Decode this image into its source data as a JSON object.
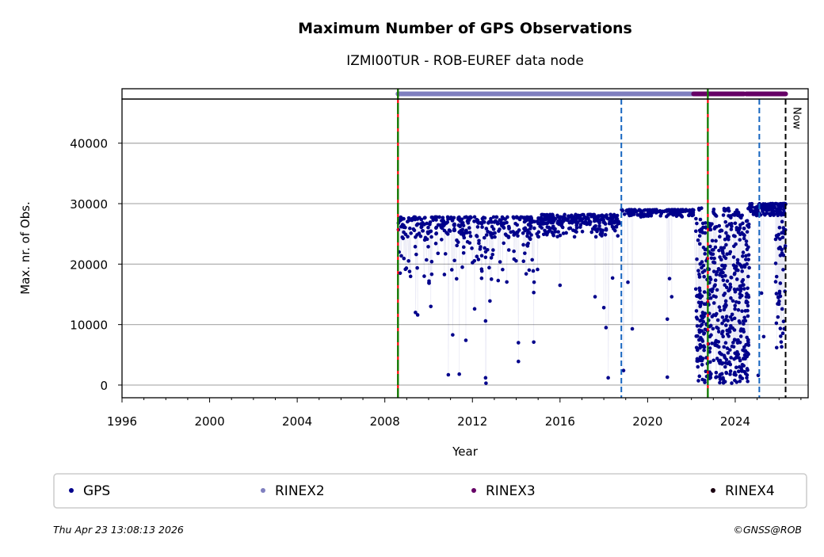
{
  "chart_data": {
    "type": "scatter",
    "title": "Maximum Number of GPS Observations",
    "subtitle": "IZMI00TUR - ROB-EUREF data node",
    "xlabel": "Year",
    "ylabel": "Max. nr. of Obs.",
    "xlim": [
      1996,
      2027.33
    ],
    "ylim": [
      -2100,
      47300
    ],
    "xticks": [
      1996,
      2000,
      2004,
      2008,
      2012,
      2016,
      2020,
      2024
    ],
    "xtick_labels": [
      "1996",
      "2000",
      "2004",
      "2008",
      "2012",
      "2016",
      "2020",
      "2024"
    ],
    "yticks": [
      0,
      10000,
      20000,
      30000,
      40000
    ],
    "ytick_labels": [
      "0",
      "10000",
      "20000",
      "30000",
      "40000"
    ],
    "grid": "horizontal",
    "series": [
      {
        "name": "GPS",
        "color": "#00008b",
        "points": [
          [
            2008.62,
            25700
          ],
          [
            2008.65,
            22000
          ],
          [
            2008.7,
            18500
          ],
          [
            2009.4,
            12000
          ],
          [
            2009.5,
            11600
          ],
          [
            2009.8,
            18000
          ],
          [
            2010.1,
            13000
          ],
          [
            2010.9,
            1700
          ],
          [
            2011.1,
            8300
          ],
          [
            2011.4,
            1800
          ],
          [
            2011.7,
            7400
          ],
          [
            2012.1,
            12600
          ],
          [
            2012.6,
            10600
          ],
          [
            2012.6,
            1200
          ],
          [
            2012.62,
            300
          ],
          [
            2012.8,
            13900
          ],
          [
            2014.1,
            7000
          ],
          [
            2014.1,
            3900
          ],
          [
            2014.8,
            7100
          ],
          [
            2014.8,
            15300
          ],
          [
            2016.0,
            16500
          ],
          [
            2017.6,
            14600
          ],
          [
            2018.0,
            12800
          ],
          [
            2018.1,
            9500
          ],
          [
            2018.2,
            1200
          ],
          [
            2018.4,
            17700
          ],
          [
            2018.9,
            2400
          ],
          [
            2019.1,
            17000
          ],
          [
            2019.3,
            9300
          ],
          [
            2020.9,
            1300
          ],
          [
            2020.9,
            10900
          ],
          [
            2021.0,
            17600
          ],
          [
            2021.1,
            14600
          ],
          [
            2025.05,
            1600
          ],
          [
            2025.2,
            15200
          ],
          [
            2025.3,
            8000
          ],
          [
            2024.3,
            2500
          ],
          [
            2023.6,
            4200
          ],
          [
            2022.4,
            13000
          ]
        ],
        "dense_bands": [
          {
            "from": 2008.6,
            "to": 2018.75,
            "min": 24500,
            "max": 27800,
            "count": 420
          },
          {
            "from": 2008.7,
            "to": 2015.0,
            "min": 16500,
            "max": 24500,
            "count": 90
          },
          {
            "from": 2015.0,
            "to": 2018.75,
            "min": 26500,
            "max": 28200,
            "count": 120
          },
          {
            "from": 2018.8,
            "to": 2022.1,
            "min": 27800,
            "max": 29000,
            "count": 150
          },
          {
            "from": 2022.2,
            "to": 2024.65,
            "min": 300,
            "max": 29300,
            "count": 520
          },
          {
            "from": 2024.65,
            "to": 2026.3,
            "min": 28000,
            "max": 30000,
            "count": 140
          },
          {
            "from": 2025.8,
            "to": 2026.3,
            "min": 6000,
            "max": 30000,
            "count": 60
          }
        ]
      }
    ],
    "format_bars": [
      {
        "name": "RINEX2",
        "color": "#7f7fbf",
        "from": 2008.6,
        "to": 2018.78
      },
      {
        "name": "RINEX2",
        "color": "#7f7fbf",
        "from": 2018.82,
        "to": 2022.1
      },
      {
        "name": "RINEX3",
        "color": "#660066",
        "from": 2022.1,
        "to": 2024.4
      },
      {
        "name": "RINEX3",
        "color": "#660066",
        "from": 2024.5,
        "to": 2026.3
      }
    ],
    "vlines": [
      {
        "x": 2008.6,
        "style": "red-green-dashed"
      },
      {
        "x": 2022.75,
        "style": "red-green-dashed"
      },
      {
        "x": 2018.8,
        "style": "blue-dashed"
      },
      {
        "x": 2025.1,
        "style": "blue-dashed"
      },
      {
        "x": 2026.3,
        "style": "black-dashed",
        "label": "Now"
      }
    ],
    "legend": {
      "placement": "bottom",
      "entries": [
        {
          "label": "GPS",
          "color": "#00008b"
        },
        {
          "label": "RINEX2",
          "color": "#7f7fbf"
        },
        {
          "label": "RINEX3",
          "color": "#660066"
        },
        {
          "label": "RINEX4",
          "color": "#1a0010"
        }
      ]
    }
  },
  "footer": {
    "timestamp": "Thu Apr 23 13:08:13 2026",
    "copyright": "©GNSS@ROB"
  }
}
